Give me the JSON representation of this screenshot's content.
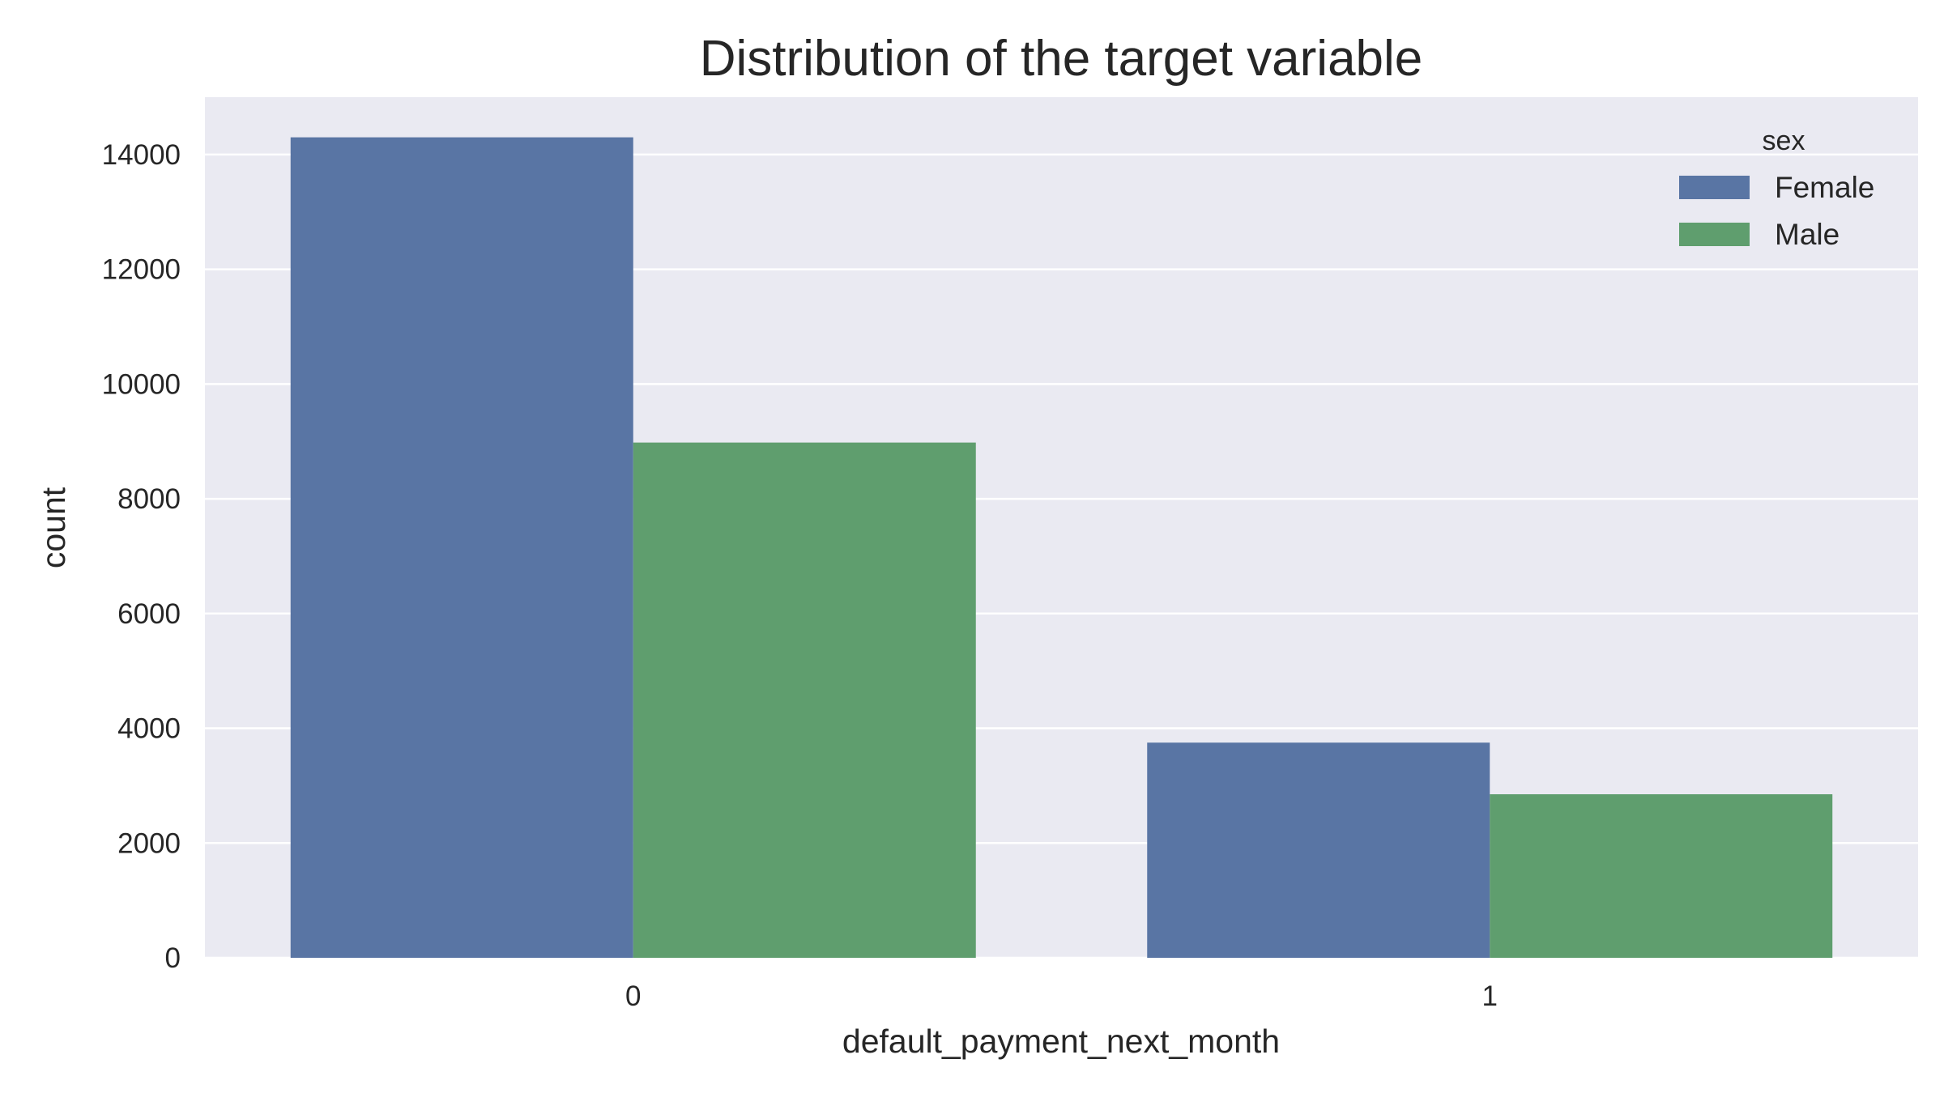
{
  "chart_data": {
    "type": "bar",
    "title": "Distribution of the target variable",
    "xlabel": "default_payment_next_month",
    "ylabel": "count",
    "categories": [
      "0",
      "1"
    ],
    "series": [
      {
        "name": "Female",
        "values": [
          14300,
          3750
        ],
        "color": "#5975a4"
      },
      {
        "name": "Male",
        "values": [
          8980,
          2850
        ],
        "color": "#5f9e6e"
      }
    ],
    "yticks": [
      0,
      2000,
      4000,
      6000,
      8000,
      10000,
      12000,
      14000
    ],
    "ylim": [
      0,
      15000
    ],
    "grid": true,
    "legend": {
      "title": "sex",
      "position": "top-right"
    },
    "colors": {
      "plot_background": "#eaeaf2",
      "grid": "#ffffff",
      "text": "#262626"
    }
  }
}
